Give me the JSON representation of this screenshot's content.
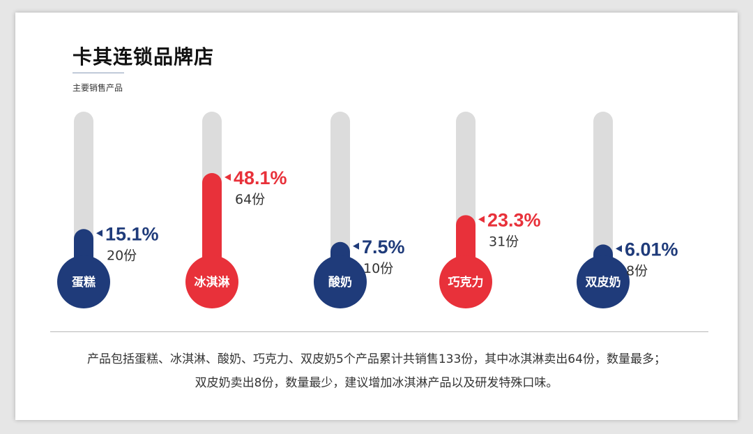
{
  "header": {
    "title": "卡其连锁品牌店",
    "subtitle": "主要销售产品"
  },
  "chart_data": {
    "type": "bar",
    "style": "thermometer",
    "categories": [
      "蛋糕",
      "冰淇淋",
      "酸奶",
      "巧克力",
      "双皮奶"
    ],
    "percent_labels": [
      "15.1%",
      "48.1%",
      "7.5%",
      "23.3%",
      "6.01%"
    ],
    "values": [
      15.1,
      48.1,
      7.5,
      23.3,
      6.01
    ],
    "count_labels": [
      "20份",
      "64份",
      "10份",
      "31份",
      "8份"
    ],
    "counts": [
      20,
      64,
      10,
      31,
      8
    ],
    "colors": [
      "#1f3b7a",
      "#e8313a",
      "#1f3b7a",
      "#e8313a",
      "#1f3b7a"
    ],
    "track_color": "#dcdcdc"
  },
  "footer": {
    "line1": "产品包括蛋糕、冰淇淋、酸奶、巧克力、双皮奶5个产品累计共销售133份，其中冰淇淋卖出64份，数量最多；",
    "line2": "双皮奶卖出8份，数量最少，建议增加冰淇淋产品以及研发特殊口味。"
  }
}
